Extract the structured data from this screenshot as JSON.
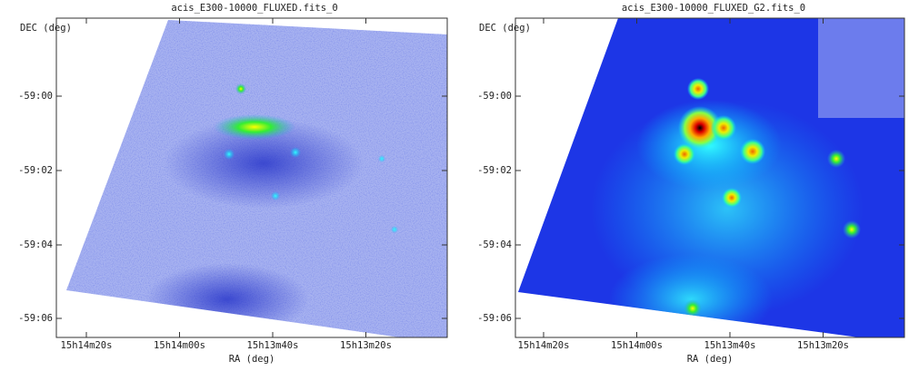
{
  "panels": [
    {
      "title": "acis_E300-10000_FLUXED.fits_0",
      "y_axis_label": "DEC (deg)",
      "x_axis_label": "RA (deg)",
      "y_tick_labels": [
        "-59:00",
        "-59:02",
        "-59:04",
        "-59:06"
      ],
      "x_tick_labels": [
        "15h14m20s",
        "15h14m00s",
        "15h13m40s",
        "15h13m20s"
      ]
    },
    {
      "title": "acis_E300-10000_FLUXED_G2.fits_0",
      "y_axis_label": "DEC (deg)",
      "x_axis_label": "RA (deg)",
      "y_tick_labels": [
        "-59:00",
        "-59:02",
        "-59:04",
        "-59:06"
      ],
      "x_tick_labels": [
        "15h14m20s",
        "15h14m00s",
        "15h13m40s",
        "15h13m20s"
      ]
    }
  ]
}
